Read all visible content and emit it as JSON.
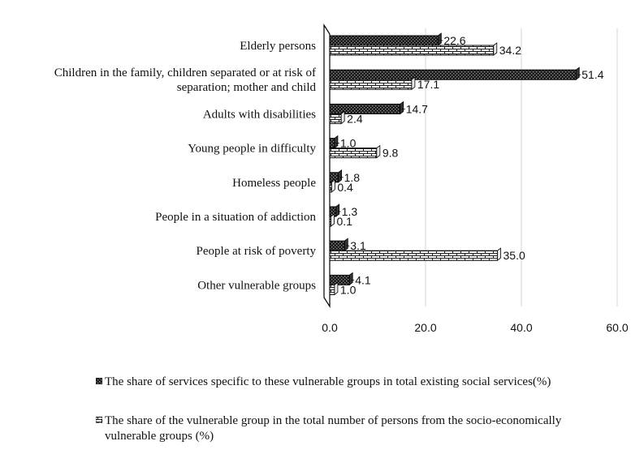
{
  "chart_data": {
    "type": "bar",
    "orientation": "horizontal",
    "categories": [
      [
        "Elderly persons"
      ],
      [
        "Children in the family, children separated or at risk of",
        "separation; mother and child"
      ],
      [
        "Adults with disabilities"
      ],
      [
        "Young people in difficulty"
      ],
      [
        "Homeless people"
      ],
      [
        "People in a situation of addiction"
      ],
      [
        "People at risk of poverty"
      ],
      [
        "Other vulnerable groups"
      ]
    ],
    "series": [
      {
        "name": "The share of services specific to these vulnerable groups in total existing social services(%)",
        "values": [
          22.6,
          51.4,
          14.7,
          1.0,
          1.8,
          1.3,
          3.1,
          4.1
        ],
        "labels": [
          "22.6",
          "51.4",
          "14.7",
          "1.0",
          "1.8",
          "1.3",
          "3.1",
          "4.1"
        ],
        "pattern": "dark-dotted"
      },
      {
        "name": "The share of the vulnerable group in the total number of persons from the socio-economically vulnerable groups (%)",
        "values": [
          34.2,
          17.1,
          2.4,
          9.8,
          0.4,
          0.1,
          35.0,
          1.0
        ],
        "labels": [
          "34.2",
          "17.1",
          "2.4",
          "9.8",
          "0.4",
          "0.1",
          "35.0",
          "1.0"
        ],
        "pattern": "brick"
      }
    ],
    "xlim": [
      0,
      60
    ],
    "xticks": [
      "0.0",
      "20.0",
      "40.0",
      "60.0"
    ],
    "xtick_values": [
      0,
      20,
      40,
      60
    ],
    "grid": true,
    "legend_position": "bottom"
  }
}
